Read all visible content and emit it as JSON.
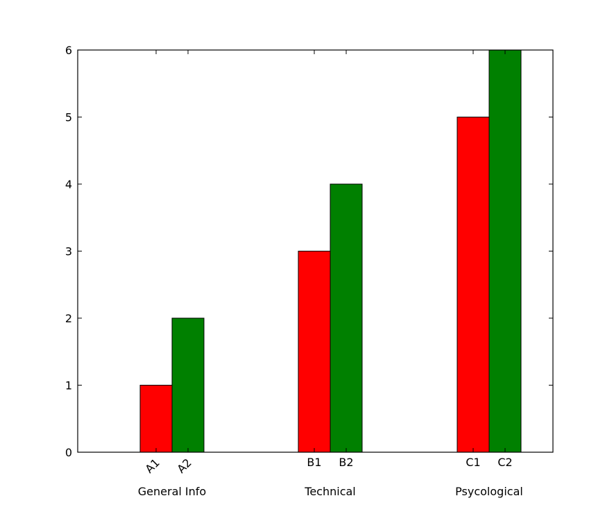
{
  "chart_data": {
    "type": "bar",
    "title": "",
    "xlabel": "",
    "ylabel": "",
    "ylim": [
      0,
      6
    ],
    "yticks": [
      0,
      1,
      2,
      3,
      4,
      5,
      6
    ],
    "grid": false,
    "legend": "none",
    "groups": [
      {
        "label": "General Info",
        "bars": [
          {
            "label": "A1",
            "value": 1,
            "color": "#ff0000",
            "rotated": true
          },
          {
            "label": "A2",
            "value": 2,
            "color": "#008000",
            "rotated": true
          }
        ]
      },
      {
        "label": "Technical",
        "bars": [
          {
            "label": "B1",
            "value": 3,
            "color": "#ff0000",
            "rotated": false
          },
          {
            "label": "B2",
            "value": 4,
            "color": "#008000",
            "rotated": false
          }
        ]
      },
      {
        "label": "Psycological",
        "bars": [
          {
            "label": "C1",
            "value": 5,
            "color": "#ff0000",
            "rotated": false
          },
          {
            "label": "C2",
            "value": 6,
            "color": "#008000",
            "rotated": false
          }
        ]
      }
    ]
  }
}
